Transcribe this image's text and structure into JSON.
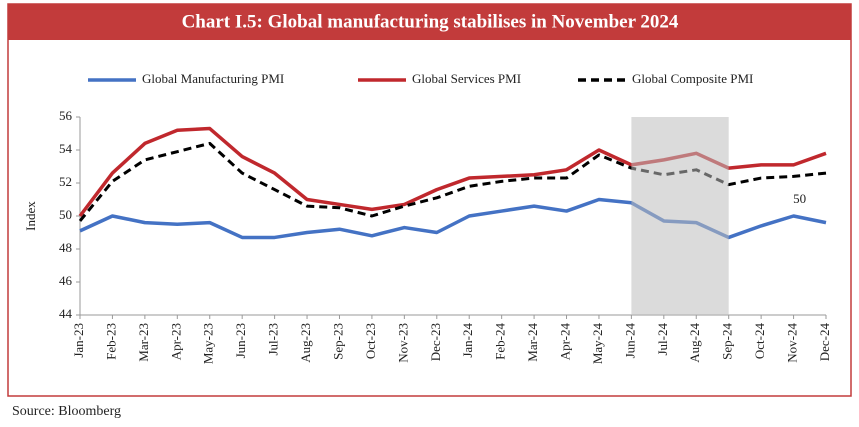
{
  "chart_data": {
    "type": "line",
    "title": "Chart I.5: Global manufacturing stabilises in November 2024",
    "y_label": "Index",
    "source": "Source: Bloomberg",
    "categories": [
      "Jan-23",
      "Feb-23",
      "Mar-23",
      "Apr-23",
      "May-23",
      "Jun-23",
      "Jul-23",
      "Aug-23",
      "Sep-23",
      "Oct-23",
      "Nov-23",
      "Dec-23",
      "Jan-24",
      "Feb-24",
      "Mar-24",
      "Apr-24",
      "May-24",
      "Jun-24",
      "Jul-24",
      "Aug-24",
      "Sep-24",
      "Oct-24",
      "Nov-24",
      "Dec-24"
    ],
    "series": [
      {
        "name": "Global Manufacturing PMI",
        "color": "#4472c4",
        "dash": false,
        "values": [
          49.1,
          50.0,
          49.6,
          49.5,
          49.6,
          48.7,
          48.7,
          49.0,
          49.2,
          48.8,
          49.3,
          49.0,
          50.0,
          50.3,
          50.6,
          50.3,
          51.0,
          50.8,
          49.7,
          49.6,
          48.7,
          49.4,
          50.0,
          49.6
        ]
      },
      {
        "name": "Global Services PMI",
        "color": "#c0282d",
        "dash": false,
        "values": [
          50.0,
          52.6,
          54.4,
          55.2,
          55.3,
          53.6,
          52.6,
          51.0,
          50.7,
          50.4,
          50.7,
          51.6,
          52.3,
          52.4,
          52.5,
          52.8,
          54.0,
          53.1,
          53.4,
          53.8,
          52.9,
          53.1,
          53.1,
          53.8
        ]
      },
      {
        "name": "Global Composite PMI",
        "color": "#000000",
        "dash": true,
        "values": [
          49.7,
          52.1,
          53.4,
          53.9,
          54.4,
          52.6,
          51.6,
          50.6,
          50.5,
          50.0,
          50.6,
          51.1,
          51.8,
          52.1,
          52.3,
          52.3,
          53.7,
          52.9,
          52.5,
          52.8,
          51.9,
          52.3,
          52.4,
          52.6
        ]
      }
    ],
    "annotations": [
      {
        "label": "50",
        "x": "Nov-24",
        "y": 50
      }
    ],
    "shaded": [
      "Jun-24",
      "Sep-24"
    ],
    "ylim": [
      44,
      56
    ],
    "yticks": [
      44,
      46,
      48,
      50,
      52,
      54,
      56
    ],
    "grid": false
  }
}
